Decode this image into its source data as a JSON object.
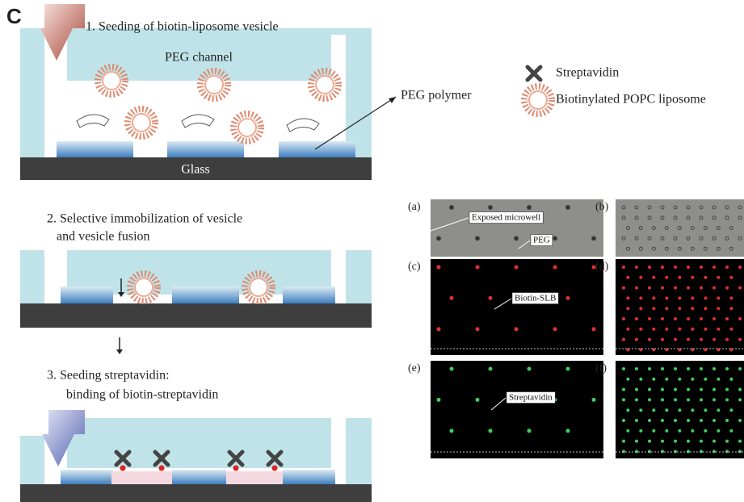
{
  "panel_label": "C",
  "steps": [
    {
      "lines": [
        "1. Seeding of biotin-liposome vesicle"
      ]
    },
    {
      "lines": [
        "2. Selective immobilization of vesicle",
        "and vesicle fusion"
      ]
    },
    {
      "lines": [
        "3. Seeding streptavidin:",
        "binding of biotin-streptavidin"
      ]
    }
  ],
  "labels": {
    "peg_channel": "PEG channel",
    "glass": "Glass",
    "peg_polymer": "PEG polymer"
  },
  "legend": [
    "Streptavidin",
    "Biotinylated POPC liposome"
  ],
  "micrographs": [
    {
      "label": "(a)",
      "annotations": [
        "Exposed microwell",
        "PEG"
      ]
    },
    {
      "label": "(b)"
    },
    {
      "label": "(c)",
      "annotations": [
        "Biotin-SLB"
      ]
    },
    {
      "label": "(d)"
    },
    {
      "label": "(e)",
      "annotations": [
        "Streptavidin"
      ]
    },
    {
      "label": "(f)"
    }
  ]
}
